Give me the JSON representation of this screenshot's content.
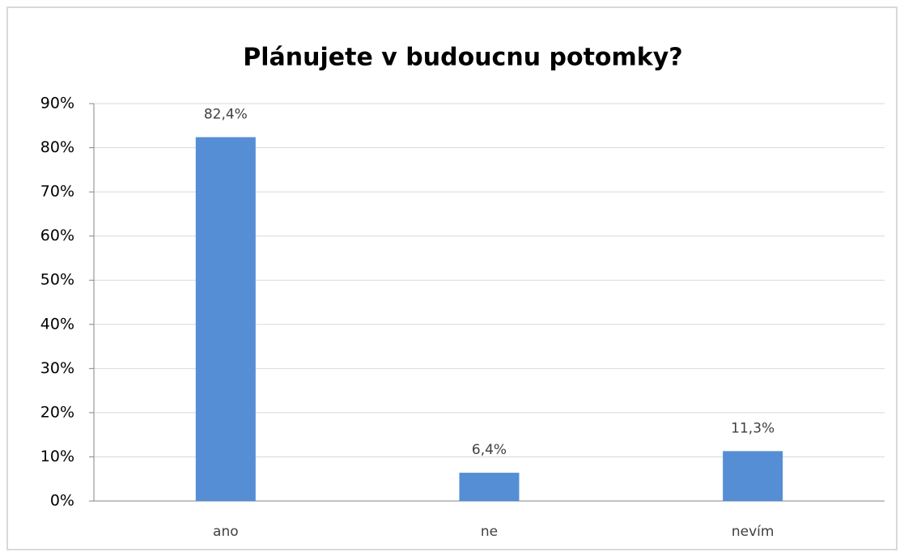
{
  "chart_data": {
    "type": "bar",
    "title": "Plánujete v budoucnu potomky?",
    "categories": [
      "ano",
      "ne",
      "nevím"
    ],
    "values": [
      82.4,
      6.4,
      11.3
    ],
    "value_labels": [
      "82,4%",
      "6,4%",
      "11,3%"
    ],
    "color": "#558ed5",
    "ylim": [
      0,
      90
    ],
    "yticks": [
      {
        "value": 0,
        "label": "0%"
      },
      {
        "value": 10,
        "label": "10%"
      },
      {
        "value": 20,
        "label": "20%"
      },
      {
        "value": 30,
        "label": "30%"
      },
      {
        "value": 40,
        "label": "40%"
      },
      {
        "value": 50,
        "label": "50%"
      },
      {
        "value": 60,
        "label": "60%"
      },
      {
        "value": 70,
        "label": "70%"
      },
      {
        "value": 80,
        "label": "80%"
      },
      {
        "value": 90,
        "label": "90%"
      }
    ],
    "grid": true
  }
}
